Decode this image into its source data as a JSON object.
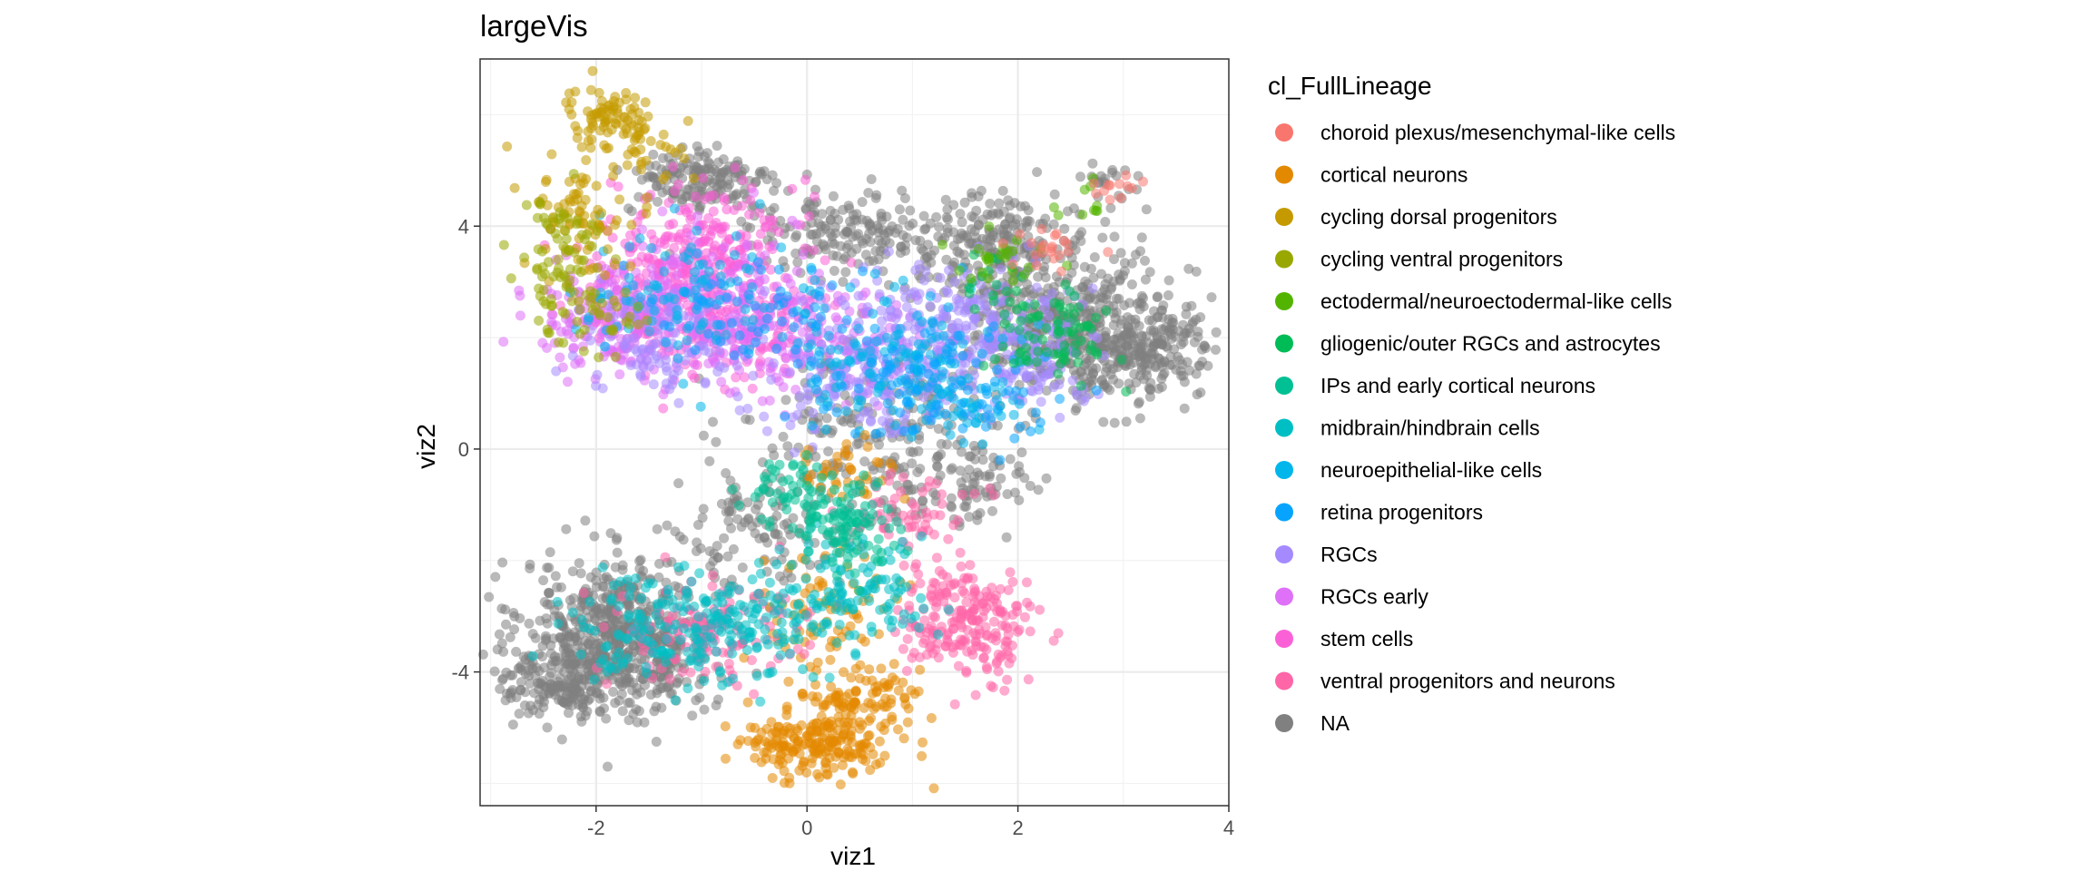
{
  "chart_data": {
    "type": "scatter",
    "title": "largeVis",
    "xlabel": "viz1",
    "ylabel": "viz2",
    "xlim": [
      -3.1,
      4.0
    ],
    "ylim": [
      -6.4,
      7.0
    ],
    "x_ticks": [
      -2,
      0,
      2,
      4
    ],
    "y_ticks": [
      -4,
      0,
      4
    ],
    "x_tick_labels": [
      "-2",
      "0",
      "2",
      "4"
    ],
    "y_tick_labels": [
      "-4",
      "0",
      "4"
    ],
    "grid": true,
    "point_alpha": 0.55,
    "legend": {
      "title": "cl_FullLineage",
      "position": "right",
      "entries": [
        {
          "label": "choroid plexus/mesenchymal-like cells",
          "color": "#F8766D"
        },
        {
          "label": "cortical neurons",
          "color": "#E38900"
        },
        {
          "label": "cycling dorsal progenitors",
          "color": "#C49A00"
        },
        {
          "label": "cycling ventral progenitors",
          "color": "#99A800"
        },
        {
          "label": "ectodermal/neuroectodermal-like cells",
          "color": "#53B400"
        },
        {
          "label": "gliogenic/outer RGCs and astrocytes",
          "color": "#00BC56"
        },
        {
          "label": "IPs and early cortical neurons",
          "color": "#00C094"
        },
        {
          "label": "midbrain/hindbrain cells",
          "color": "#00BFC4"
        },
        {
          "label": "neuroepithelial-like cells",
          "color": "#00B6EB"
        },
        {
          "label": "retina progenitors",
          "color": "#06A4FF"
        },
        {
          "label": "RGCs",
          "color": "#A58AFF"
        },
        {
          "label": "RGCs early",
          "color": "#DF70F8"
        },
        {
          "label": "stem cells",
          "color": "#FB61D7"
        },
        {
          "label": "ventral progenitors and neurons",
          "color": "#FF66A8"
        },
        {
          "label": "NA",
          "color": "#808080"
        }
      ]
    },
    "series": [
      {
        "name": "NA",
        "clusters": [
          {
            "cx": -1.8,
            "cy": -3.4,
            "sx": 0.45,
            "sy": 0.7,
            "n": 650
          },
          {
            "cx": -2.4,
            "cy": -4.2,
            "sx": 0.25,
            "sy": 0.3,
            "n": 120
          },
          {
            "cx": 2.6,
            "cy": 2.1,
            "sx": 0.55,
            "sy": 0.6,
            "n": 450
          },
          {
            "cx": 3.2,
            "cy": 1.7,
            "sx": 0.35,
            "sy": 0.4,
            "n": 150
          },
          {
            "cx": 1.8,
            "cy": 3.6,
            "sx": 0.45,
            "sy": 0.5,
            "n": 250
          },
          {
            "cx": 0.3,
            "cy": 3.9,
            "sx": 0.5,
            "sy": 0.4,
            "n": 160
          },
          {
            "cx": -1.0,
            "cy": 4.8,
            "sx": 0.35,
            "sy": 0.3,
            "n": 160
          },
          {
            "cx": 0.6,
            "cy": 0.2,
            "sx": 0.6,
            "sy": 0.8,
            "n": 230
          },
          {
            "cx": 1.6,
            "cy": -0.7,
            "sx": 0.3,
            "sy": 0.4,
            "n": 70
          },
          {
            "cx": 2.9,
            "cy": 4.8,
            "sx": 0.2,
            "sy": 0.15,
            "n": 20
          },
          {
            "cx": -0.4,
            "cy": -1.5,
            "sx": 0.4,
            "sy": 0.5,
            "n": 110
          }
        ]
      },
      {
        "name": "stem cells",
        "clusters": [
          {
            "cx": -1.0,
            "cy": 3.6,
            "sx": 0.45,
            "sy": 0.6,
            "n": 240
          },
          {
            "cx": -0.7,
            "cy": 2.2,
            "sx": 0.4,
            "sy": 0.5,
            "n": 160
          },
          {
            "cx": -1.6,
            "cy": 2.6,
            "sx": 0.35,
            "sy": 0.5,
            "n": 100
          }
        ]
      },
      {
        "name": "RGCs early",
        "clusters": [
          {
            "cx": -1.2,
            "cy": 2.5,
            "sx": 0.55,
            "sy": 0.7,
            "n": 240
          },
          {
            "cx": 0.2,
            "cy": 2.0,
            "sx": 0.5,
            "sy": 0.5,
            "n": 140
          },
          {
            "cx": -2.0,
            "cy": 2.3,
            "sx": 0.3,
            "sy": 0.4,
            "n": 80
          }
        ]
      },
      {
        "name": "RGCs",
        "clusters": [
          {
            "cx": 1.5,
            "cy": 2.2,
            "sx": 0.55,
            "sy": 0.55,
            "n": 240
          },
          {
            "cx": 0.5,
            "cy": 1.3,
            "sx": 0.5,
            "sy": 0.5,
            "n": 150
          },
          {
            "cx": -1.3,
            "cy": 2.0,
            "sx": 0.4,
            "sy": 0.5,
            "n": 120
          },
          {
            "cx": 2.2,
            "cy": 1.6,
            "sx": 0.3,
            "sy": 0.4,
            "n": 80
          }
        ]
      },
      {
        "name": "neuroepithelial-like cells",
        "clusters": [
          {
            "cx": 0.8,
            "cy": 1.6,
            "sx": 0.6,
            "sy": 0.6,
            "n": 150
          },
          {
            "cx": -1.2,
            "cy": 2.8,
            "sx": 0.5,
            "sy": 0.6,
            "n": 100
          },
          {
            "cx": 1.5,
            "cy": 0.8,
            "sx": 0.3,
            "sy": 0.3,
            "n": 40
          }
        ]
      },
      {
        "name": "retina progenitors",
        "clusters": [
          {
            "cx": 1.2,
            "cy": 1.0,
            "sx": 0.5,
            "sy": 0.5,
            "n": 90
          },
          {
            "cx": -0.5,
            "cy": 2.5,
            "sx": 0.5,
            "sy": 0.5,
            "n": 60
          }
        ]
      },
      {
        "name": "cycling dorsal progenitors",
        "clusters": [
          {
            "cx": -1.9,
            "cy": 6.0,
            "sx": 0.2,
            "sy": 0.25,
            "n": 80
          },
          {
            "cx": -2.1,
            "cy": 4.2,
            "sx": 0.25,
            "sy": 0.5,
            "n": 80
          },
          {
            "cx": -1.5,
            "cy": 5.4,
            "sx": 0.2,
            "sy": 0.3,
            "n": 30
          }
        ]
      },
      {
        "name": "cycling ventral progenitors",
        "clusters": [
          {
            "cx": -2.3,
            "cy": 3.2,
            "sx": 0.2,
            "sy": 0.7,
            "n": 80
          },
          {
            "cx": -2.0,
            "cy": 2.2,
            "sx": 0.25,
            "sy": 0.3,
            "n": 30
          }
        ]
      },
      {
        "name": "cortical neurons",
        "clusters": [
          {
            "cx": 0.1,
            "cy": -5.3,
            "sx": 0.35,
            "sy": 0.3,
            "n": 200
          },
          {
            "cx": 0.5,
            "cy": -4.5,
            "sx": 0.3,
            "sy": 0.35,
            "n": 100
          },
          {
            "cx": 0.2,
            "cy": -2.9,
            "sx": 0.3,
            "sy": 0.5,
            "n": 80
          },
          {
            "cx": 0.4,
            "cy": -0.4,
            "sx": 0.25,
            "sy": 0.3,
            "n": 40
          }
        ]
      },
      {
        "name": "ventral progenitors and neurons",
        "clusters": [
          {
            "cx": 1.5,
            "cy": -3.1,
            "sx": 0.3,
            "sy": 0.5,
            "n": 220
          },
          {
            "cx": -0.9,
            "cy": -3.3,
            "sx": 0.5,
            "sy": 0.5,
            "n": 130
          },
          {
            "cx": 1.0,
            "cy": -1.2,
            "sx": 0.3,
            "sy": 0.4,
            "n": 60
          }
        ]
      },
      {
        "name": "midbrain/hindbrain cells",
        "clusters": [
          {
            "cx": -0.8,
            "cy": -3.2,
            "sx": 0.55,
            "sy": 0.5,
            "n": 200
          },
          {
            "cx": 0.5,
            "cy": -2.5,
            "sx": 0.35,
            "sy": 0.5,
            "n": 100
          },
          {
            "cx": -1.8,
            "cy": -3.4,
            "sx": 0.3,
            "sy": 0.4,
            "n": 50
          }
        ]
      },
      {
        "name": "IPs and early cortical neurons",
        "clusters": [
          {
            "cx": 0.3,
            "cy": -1.4,
            "sx": 0.25,
            "sy": 0.45,
            "n": 110
          },
          {
            "cx": -0.2,
            "cy": -0.6,
            "sx": 0.2,
            "sy": 0.3,
            "n": 40
          }
        ]
      },
      {
        "name": "gliogenic/outer RGCs and astrocytes",
        "clusters": [
          {
            "cx": 2.4,
            "cy": 2.0,
            "sx": 0.35,
            "sy": 0.35,
            "n": 70
          },
          {
            "cx": 1.9,
            "cy": 2.8,
            "sx": 0.3,
            "sy": 0.3,
            "n": 25
          }
        ]
      },
      {
        "name": "ectodermal/neuroectodermal-like cells",
        "clusters": [
          {
            "cx": 1.9,
            "cy": 3.4,
            "sx": 0.3,
            "sy": 0.2,
            "n": 25
          },
          {
            "cx": 2.6,
            "cy": 4.5,
            "sx": 0.15,
            "sy": 0.2,
            "n": 10
          }
        ]
      },
      {
        "name": "choroid plexus/mesenchymal-like cells",
        "clusters": [
          {
            "cx": 2.9,
            "cy": 4.7,
            "sx": 0.12,
            "sy": 0.15,
            "n": 12
          },
          {
            "cx": 2.3,
            "cy": 3.6,
            "sx": 0.2,
            "sy": 0.2,
            "n": 22
          }
        ]
      }
    ]
  }
}
